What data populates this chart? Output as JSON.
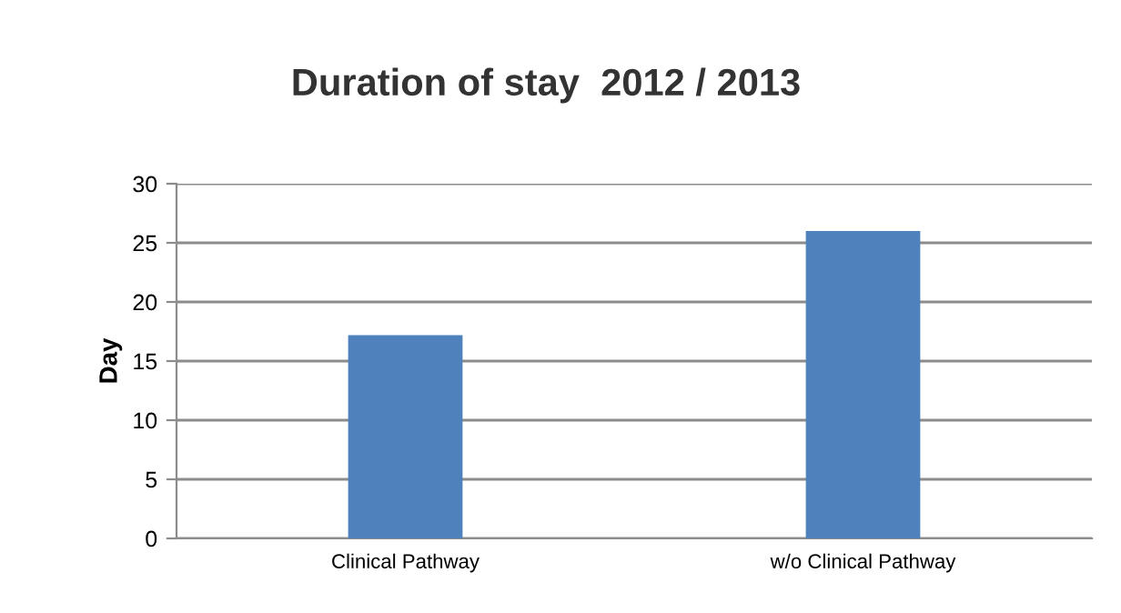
{
  "chart_data": {
    "type": "bar",
    "title": "Duration of stay  2012 / 2013",
    "ylabel": "Day",
    "categories": [
      "Clinical Pathway",
      "w/o Clinical Pathway"
    ],
    "values": [
      17.2,
      26.0
    ],
    "color": "#4f81bd",
    "ylim": [
      0,
      30
    ],
    "yticks": [
      0,
      5,
      10,
      15,
      20,
      25,
      30
    ],
    "grid": "y",
    "legend": false
  }
}
